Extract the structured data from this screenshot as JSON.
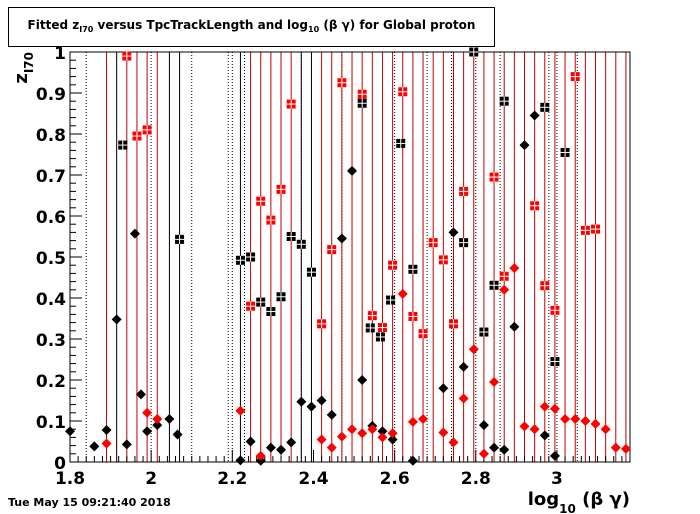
{
  "title": {
    "prefix": "Fitted  z",
    "sub1": "I70",
    "middle": "  versus TpcTrackLength and log",
    "sub2": "10",
    "suffix": " (β γ) for Global proton"
  },
  "timestamp": "Tue May 15 09:21:40 2018",
  "colors": {
    "black": "#000000",
    "red": "#ff0000",
    "red_line": "#c00000"
  },
  "chart_data": {
    "type": "scatter",
    "title": "Fitted  zI70  versus TpcTrackLength and log10 (β γ) for Global proton",
    "xlabel_main": "log",
    "xlabel_sub": "10",
    "xlabel_suffix": " (β γ)",
    "ylabel_main": "z",
    "ylabel_sub": "I70",
    "xlim": [
      1.8,
      3.18
    ],
    "ylim": [
      0,
      1
    ],
    "x_ticks": [
      {
        "value": 1.8,
        "label": "1.8"
      },
      {
        "value": 2.0,
        "label": "2"
      },
      {
        "value": 2.2,
        "label": "2.2"
      },
      {
        "value": 2.4,
        "label": "2.4"
      },
      {
        "value": 2.6,
        "label": "2.6"
      },
      {
        "value": 2.8,
        "label": "2.8"
      },
      {
        "value": 3.0,
        "label": "3"
      }
    ],
    "y_ticks": [
      {
        "value": 0,
        "label": "0"
      },
      {
        "value": 0.1,
        "label": "0.1"
      },
      {
        "value": 0.2,
        "label": "0.2"
      },
      {
        "value": 0.3,
        "label": "0.3"
      },
      {
        "value": 0.4,
        "label": "0.4"
      },
      {
        "value": 0.5,
        "label": "0.5"
      },
      {
        "value": 0.6,
        "label": "0.6"
      },
      {
        "value": 0.7,
        "label": "0.7"
      },
      {
        "value": 0.8,
        "label": "0.8"
      },
      {
        "value": 0.9,
        "label": "0.9"
      },
      {
        "value": 1.0,
        "label": "1"
      }
    ],
    "series": [
      {
        "color": "#000000",
        "marker": "square",
        "points": [
          [
            1.93,
            0.773
          ],
          [
            2.07,
            0.543
          ],
          [
            2.22,
            0.492
          ],
          [
            2.245,
            0.5
          ],
          [
            2.27,
            0.39
          ],
          [
            2.295,
            0.367
          ],
          [
            2.32,
            0.403
          ],
          [
            2.345,
            0.55
          ],
          [
            2.37,
            0.531
          ],
          [
            2.395,
            0.463
          ],
          [
            2.52,
            0.875
          ],
          [
            2.54,
            0.327
          ],
          [
            2.565,
            0.305
          ],
          [
            2.59,
            0.395
          ],
          [
            2.615,
            0.777
          ],
          [
            2.645,
            0.47
          ],
          [
            2.77,
            0.535
          ],
          [
            2.795,
            1.0
          ],
          [
            2.82,
            0.317
          ],
          [
            2.845,
            0.431
          ],
          [
            2.87,
            0.88
          ],
          [
            2.97,
            0.865
          ],
          [
            2.995,
            0.245
          ],
          [
            3.02,
            0.755
          ]
        ]
      },
      {
        "color": "#000000",
        "marker": "diamond",
        "points": [
          [
            1.8,
            0.075
          ],
          [
            1.86,
            0.038
          ],
          [
            1.89,
            0.078
          ],
          [
            1.915,
            0.348
          ],
          [
            1.94,
            0.043
          ],
          [
            1.96,
            0.557
          ],
          [
            1.975,
            0.165
          ],
          [
            1.99,
            0.075
          ],
          [
            2.015,
            0.09
          ],
          [
            2.045,
            0.105
          ],
          [
            2.065,
            0.067
          ],
          [
            2.22,
            0.004
          ],
          [
            2.245,
            0.05
          ],
          [
            2.27,
            0.003
          ],
          [
            2.295,
            0.035
          ],
          [
            2.32,
            0.03
          ],
          [
            2.345,
            0.048
          ],
          [
            2.37,
            0.147
          ],
          [
            2.395,
            0.135
          ],
          [
            2.42,
            0.15
          ],
          [
            2.445,
            0.115
          ],
          [
            2.47,
            0.545
          ],
          [
            2.495,
            0.71
          ],
          [
            2.52,
            0.2
          ],
          [
            2.545,
            0.088
          ],
          [
            2.57,
            0.075
          ],
          [
            2.595,
            0.055
          ],
          [
            2.645,
            0.003
          ],
          [
            2.72,
            0.18
          ],
          [
            2.745,
            0.56
          ],
          [
            2.77,
            0.232
          ],
          [
            2.82,
            0.09
          ],
          [
            2.845,
            0.035
          ],
          [
            2.87,
            0.03
          ],
          [
            2.895,
            0.33
          ],
          [
            2.92,
            0.773
          ],
          [
            2.945,
            0.845
          ],
          [
            2.97,
            0.065
          ],
          [
            2.995,
            0.015
          ]
        ]
      },
      {
        "color": "#ff0000",
        "marker": "square",
        "points": [
          [
            1.94,
            0.99
          ],
          [
            1.965,
            0.795
          ],
          [
            1.99,
            0.81
          ],
          [
            2.245,
            0.38
          ],
          [
            2.27,
            0.636
          ],
          [
            2.295,
            0.59
          ],
          [
            2.32,
            0.665
          ],
          [
            2.345,
            0.873
          ],
          [
            2.42,
            0.337
          ],
          [
            2.445,
            0.518
          ],
          [
            2.47,
            0.925
          ],
          [
            2.52,
            0.897
          ],
          [
            2.545,
            0.357
          ],
          [
            2.57,
            0.328
          ],
          [
            2.595,
            0.48
          ],
          [
            2.62,
            0.903
          ],
          [
            2.645,
            0.355
          ],
          [
            2.67,
            0.313
          ],
          [
            2.695,
            0.535
          ],
          [
            2.72,
            0.493
          ],
          [
            2.745,
            0.337
          ],
          [
            2.77,
            0.66
          ],
          [
            2.845,
            0.695
          ],
          [
            2.87,
            0.453
          ],
          [
            2.945,
            0.625
          ],
          [
            2.97,
            0.43
          ],
          [
            2.995,
            0.37
          ],
          [
            3.045,
            0.94
          ],
          [
            3.07,
            0.565
          ],
          [
            3.095,
            0.568
          ]
        ]
      },
      {
        "color": "#ff0000",
        "marker": "diamond",
        "points": [
          [
            1.89,
            0.045
          ],
          [
            1.99,
            0.12
          ],
          [
            2.015,
            0.105
          ],
          [
            2.22,
            0.125
          ],
          [
            2.27,
            0.015
          ],
          [
            2.42,
            0.055
          ],
          [
            2.445,
            0.035
          ],
          [
            2.47,
            0.062
          ],
          [
            2.495,
            0.08
          ],
          [
            2.52,
            0.07
          ],
          [
            2.545,
            0.08
          ],
          [
            2.57,
            0.06
          ],
          [
            2.595,
            0.07
          ],
          [
            2.62,
            0.41
          ],
          [
            2.645,
            0.098
          ],
          [
            2.67,
            0.105
          ],
          [
            2.72,
            0.072
          ],
          [
            2.745,
            0.048
          ],
          [
            2.77,
            0.155
          ],
          [
            2.795,
            0.275
          ],
          [
            2.82,
            0.02
          ],
          [
            2.845,
            0.195
          ],
          [
            2.87,
            0.42
          ],
          [
            2.895,
            0.473
          ],
          [
            2.92,
            0.087
          ],
          [
            2.945,
            0.08
          ],
          [
            2.97,
            0.135
          ],
          [
            2.995,
            0.13
          ],
          [
            3.02,
            0.105
          ],
          [
            3.045,
            0.105
          ],
          [
            3.07,
            0.1
          ],
          [
            3.095,
            0.093
          ],
          [
            3.12,
            0.08
          ],
          [
            3.145,
            0.035
          ],
          [
            3.17,
            0.032
          ]
        ]
      }
    ],
    "vertical_lines": [
      {
        "x": 1.89,
        "color": "#c00000"
      },
      {
        "x": 1.915,
        "color": "#000000"
      },
      {
        "x": 1.94,
        "color": "#c00000"
      },
      {
        "x": 1.965,
        "color": "#c00000"
      },
      {
        "x": 1.99,
        "color": "#c00000"
      },
      {
        "x": 2.015,
        "color": "#c00000"
      },
      {
        "x": 2.045,
        "color": "#000000"
      },
      {
        "x": 2.07,
        "color": "#000000"
      },
      {
        "x": 2.22,
        "color": "#000000"
      },
      {
        "x": 2.245,
        "color": "#c00000"
      },
      {
        "x": 2.27,
        "color": "#c00000"
      },
      {
        "x": 2.295,
        "color": "#c00000"
      },
      {
        "x": 2.32,
        "color": "#c00000"
      },
      {
        "x": 2.345,
        "color": "#c00000"
      },
      {
        "x": 2.37,
        "color": "#000000"
      },
      {
        "x": 2.395,
        "color": "#000000"
      },
      {
        "x": 2.42,
        "color": "#c00000"
      },
      {
        "x": 2.445,
        "color": "#c00000"
      },
      {
        "x": 2.47,
        "color": "#c00000"
      },
      {
        "x": 2.495,
        "color": "#c00000"
      },
      {
        "x": 2.52,
        "color": "#c00000"
      },
      {
        "x": 2.545,
        "color": "#c00000"
      },
      {
        "x": 2.57,
        "color": "#c00000"
      },
      {
        "x": 2.595,
        "color": "#c00000"
      },
      {
        "x": 2.62,
        "color": "#c00000"
      },
      {
        "x": 2.645,
        "color": "#c00000"
      },
      {
        "x": 2.67,
        "color": "#c00000"
      },
      {
        "x": 2.695,
        "color": "#c00000"
      },
      {
        "x": 2.72,
        "color": "#c00000"
      },
      {
        "x": 2.745,
        "color": "#c00000"
      },
      {
        "x": 2.77,
        "color": "#c00000"
      },
      {
        "x": 2.795,
        "color": "#c00000"
      },
      {
        "x": 2.82,
        "color": "#c00000"
      },
      {
        "x": 2.845,
        "color": "#c00000"
      },
      {
        "x": 2.87,
        "color": "#c00000"
      },
      {
        "x": 2.895,
        "color": "#c00000"
      },
      {
        "x": 2.92,
        "color": "#c00000"
      },
      {
        "x": 2.945,
        "color": "#c00000"
      },
      {
        "x": 2.97,
        "color": "#c00000"
      },
      {
        "x": 2.995,
        "color": "#c00000"
      },
      {
        "x": 3.02,
        "color": "#c00000"
      },
      {
        "x": 3.045,
        "color": "#c00000"
      },
      {
        "x": 3.07,
        "color": "#c00000"
      },
      {
        "x": 3.095,
        "color": "#c00000"
      },
      {
        "x": 3.12,
        "color": "#c00000"
      },
      {
        "x": 3.145,
        "color": "#c00000"
      },
      {
        "x": 3.17,
        "color": "#c00000"
      }
    ],
    "dotted_lines": [
      1.84,
      2.0,
      2.1,
      2.19,
      2.2,
      2.23,
      2.32,
      2.37,
      2.47,
      2.6,
      2.68,
      2.74,
      2.8,
      2.86,
      2.92,
      2.98,
      3.0,
      3.05
    ],
    "grid": false,
    "legend": "none"
  }
}
